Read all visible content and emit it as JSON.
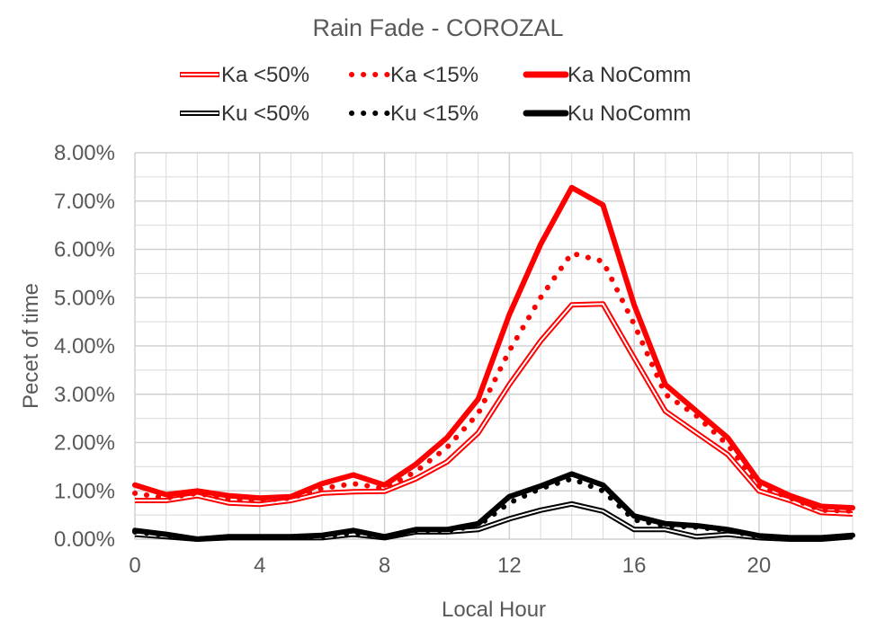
{
  "chart_data": {
    "type": "line",
    "title": "Rain Fade - COROZAL",
    "xlabel": "Local Hour",
    "ylabel": "Pecet of time",
    "x": [
      0,
      1,
      2,
      3,
      4,
      5,
      6,
      7,
      8,
      9,
      10,
      11,
      12,
      13,
      14,
      15,
      16,
      17,
      18,
      19,
      20,
      21,
      22,
      23
    ],
    "xlim": [
      0,
      23
    ],
    "ylim": [
      0,
      0.08
    ],
    "x_ticks": [
      0,
      4,
      8,
      12,
      16,
      20
    ],
    "y_ticks": [
      0,
      0.01,
      0.02,
      0.03,
      0.04,
      0.05,
      0.06,
      0.07,
      0.08
    ],
    "y_tick_labels": [
      "0.00%",
      "1.00%",
      "2.00%",
      "3.00%",
      "4.00%",
      "5.00%",
      "6.00%",
      "7.00%",
      "8.00%"
    ],
    "grid": true,
    "legend_position": "top",
    "series": [
      {
        "name": "Ka <50%",
        "style": "double",
        "color": "#ff0000",
        "values": [
          0.008,
          0.008,
          0.009,
          0.0075,
          0.0072,
          0.008,
          0.0095,
          0.0098,
          0.0099,
          0.0125,
          0.016,
          0.022,
          0.032,
          0.041,
          0.0485,
          0.0487,
          0.0375,
          0.0265,
          0.022,
          0.0175,
          0.01,
          0.008,
          0.0055,
          0.0052
        ]
      },
      {
        "name": "Ka <15%",
        "style": "dotted",
        "color": "#ff0000",
        "values": [
          0.0095,
          0.0085,
          0.0095,
          0.0083,
          0.008,
          0.0085,
          0.0105,
          0.0115,
          0.0105,
          0.014,
          0.019,
          0.026,
          0.039,
          0.05,
          0.0592,
          0.0575,
          0.0445,
          0.03,
          0.0255,
          0.0195,
          0.011,
          0.0085,
          0.006,
          0.0058
        ]
      },
      {
        "name": "Ka NoComm",
        "style": "thick",
        "color": "#ff0000",
        "values": [
          0.0112,
          0.0092,
          0.01,
          0.009,
          0.0085,
          0.0088,
          0.0115,
          0.0133,
          0.0112,
          0.0155,
          0.021,
          0.029,
          0.0465,
          0.061,
          0.0728,
          0.0692,
          0.0485,
          0.032,
          0.0265,
          0.021,
          0.012,
          0.009,
          0.0068,
          0.0065
        ]
      },
      {
        "name": "Ku <50%",
        "style": "double",
        "color": "#000000",
        "values": [
          0.001,
          0.0005,
          0.0,
          0.0003,
          0.0003,
          0.0003,
          0.0003,
          0.001,
          0.0003,
          0.0015,
          0.0015,
          0.002,
          0.0042,
          0.006,
          0.0073,
          0.0058,
          0.002,
          0.002,
          0.0005,
          0.001,
          0.0003,
          0.0,
          0.0,
          0.0005
        ]
      },
      {
        "name": "Ku <15%",
        "style": "dotted",
        "color": "#000000",
        "values": [
          0.0015,
          0.0008,
          0.0,
          0.0004,
          0.0004,
          0.0004,
          0.0006,
          0.0013,
          0.0004,
          0.0018,
          0.0018,
          0.0028,
          0.0075,
          0.0105,
          0.0125,
          0.01,
          0.004,
          0.0028,
          0.0025,
          0.0018,
          0.0005,
          0.0002,
          0.0003,
          0.0007
        ]
      },
      {
        "name": "Ku NoComm",
        "style": "thick",
        "color": "#000000",
        "values": [
          0.0018,
          0.001,
          0.0,
          0.0005,
          0.0005,
          0.0005,
          0.0008,
          0.0018,
          0.0005,
          0.002,
          0.002,
          0.0032,
          0.0088,
          0.011,
          0.0135,
          0.0112,
          0.0048,
          0.0032,
          0.0028,
          0.002,
          0.0007,
          0.0003,
          0.0003,
          0.0008
        ]
      }
    ]
  }
}
